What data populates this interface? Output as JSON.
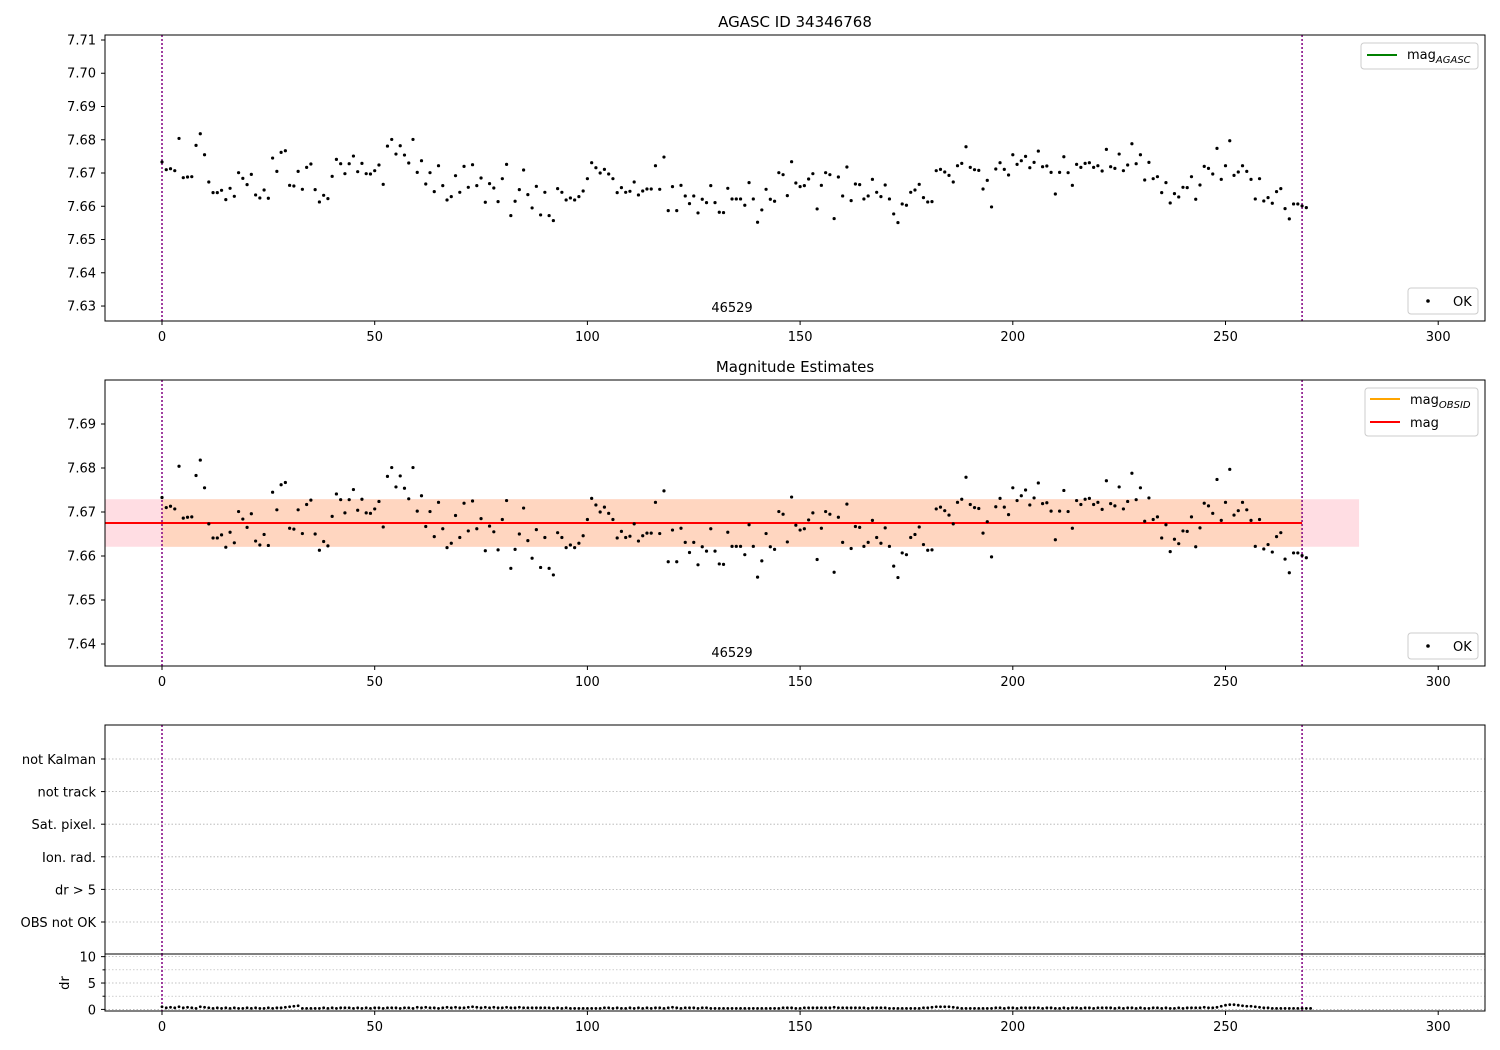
{
  "panels": {
    "top": {
      "title": "AGASC ID 34346768",
      "obsid_label": "46529",
      "y_ticks": [
        "7.63",
        "7.64",
        "7.65",
        "7.66",
        "7.67",
        "7.68",
        "7.69",
        "7.70",
        "7.71"
      ],
      "legend_line": {
        "label_main": "mag",
        "label_sub": "AGASC"
      },
      "legend_points": {
        "label": "OK"
      }
    },
    "middle": {
      "title": "Magnitude Estimates",
      "obsid_label": "46529",
      "y_ticks": [
        "7.64",
        "7.65",
        "7.66",
        "7.67",
        "7.68",
        "7.69"
      ],
      "legend_obsid": {
        "label_main": "mag",
        "label_sub": "OBSID"
      },
      "legend_mag": {
        "label": "mag"
      },
      "legend_points": {
        "label": "OK"
      }
    },
    "flags": {
      "labels": [
        "not Kalman",
        "not track",
        "Sat. pixel.",
        "Ion. rad.",
        "dr > 5",
        "OBS not OK"
      ]
    },
    "dr": {
      "ylabel": "dr",
      "y_ticks": [
        "0",
        "5",
        "10"
      ]
    },
    "x_ticks": [
      "0",
      "50",
      "100",
      "150",
      "200",
      "250",
      "300"
    ]
  },
  "colors": {
    "mag_agasc": "#008000",
    "mag_obsid": "#ffa500",
    "mag": "#ff0000",
    "obsid_boundary": "#800080",
    "band_outer": "#ffdde3",
    "band_inner": "#ffd6c0",
    "points": "#000000",
    "grid": "#b0b0b0"
  },
  "chart_data": [
    {
      "type": "scatter",
      "title": "AGASC ID 34346768",
      "xlim": [
        -13.4,
        311
      ],
      "ylim": [
        7.6255,
        7.7115
      ],
      "x_ticks": [
        0,
        50,
        100,
        150,
        200,
        250,
        300
      ],
      "y_ticks": [
        7.63,
        7.64,
        7.65,
        7.66,
        7.67,
        7.68,
        7.69,
        7.7,
        7.71
      ],
      "obsid_boundaries": [
        0,
        268
      ],
      "obsid_annotation": "46529",
      "series": [
        {
          "name": "OK",
          "kind": "points",
          "color": "#000000",
          "x_start": 0,
          "x_step": 1,
          "values": [
            7.6733,
            7.671,
            7.6713,
            7.6707,
            7.6804,
            7.6686,
            7.6688,
            7.6689,
            7.6783,
            7.6818,
            7.6755,
            7.6673,
            7.6641,
            7.6641,
            7.6648,
            7.662,
            7.6654,
            7.663,
            7.6701,
            7.6684,
            7.6665,
            7.6696,
            7.6634,
            7.6625,
            7.6649,
            7.6624,
            7.6745,
            7.6705,
            7.6762,
            7.6767,
            7.6663,
            7.6661,
            7.6705,
            7.6651,
            7.6717,
            7.6727,
            7.665,
            7.6613,
            7.6633,
            7.6623,
            7.669,
            7.6741,
            7.6728,
            7.6698,
            7.6728,
            7.6751,
            7.6704,
            7.6729,
            7.6698,
            7.6697,
            7.6707,
            7.6724,
            7.6666,
            7.6781,
            7.6801,
            7.6757,
            7.6782,
            7.6754,
            7.673,
            7.6801,
            7.6702,
            7.6737,
            7.6667,
            7.6701,
            7.6644,
            7.6722,
            7.6662,
            7.6619,
            7.6629,
            7.6692,
            7.6642,
            7.672,
            7.6657,
            7.6725,
            7.6662,
            7.6685,
            7.6612,
            7.6668,
            7.6655,
            7.6614,
            7.6683,
            7.6726,
            7.6572,
            7.6615,
            7.665,
            7.6709,
            7.6635,
            7.6595,
            7.666,
            7.6574,
            7.6642,
            7.6572,
            7.6557,
            7.6653,
            7.6642,
            7.6619,
            7.6625,
            7.6619,
            7.6629,
            7.6646,
            7.6683,
            7.6731,
            7.6716,
            7.67,
            7.6711,
            7.6697,
            7.6683,
            7.6641,
            7.6656,
            7.6642,
            7.6645,
            7.6673,
            7.6634,
            7.6646,
            7.6652,
            7.6652,
            7.6722,
            7.6651,
            7.6748,
            7.6587,
            7.6659,
            7.6587,
            7.6663,
            7.6631,
            7.6608,
            7.6631,
            7.658,
            7.6621,
            7.6611,
            7.6662,
            7.6611,
            7.6582,
            7.6581,
            7.6654,
            7.6622,
            7.6622,
            7.6622,
            7.6603,
            7.6671,
            7.6622,
            7.6552,
            7.6589,
            7.6651,
            7.6621,
            7.6615,
            7.6701,
            7.6695,
            7.6632,
            7.6734,
            7.667,
            7.6659,
            7.6662,
            7.6682,
            7.6698,
            7.6592,
            7.6663,
            7.6701,
            7.6695,
            7.6563,
            7.6688,
            7.6631,
            7.6718,
            7.6617,
            7.6667,
            7.6665,
            7.6622,
            7.6631,
            7.6681,
            7.6642,
            7.6629,
            7.6664,
            7.6622,
            7.6577,
            7.6551,
            7.6607,
            7.6603,
            7.6642,
            7.6649,
            7.6666,
            7.6626,
            7.6613,
            7.6614,
            7.6707,
            7.6711,
            7.6703,
            7.6693,
            7.6673,
            7.6722,
            7.6729,
            7.6779,
            7.6717,
            7.671,
            7.6708,
            7.6652,
            7.6678,
            7.6598,
            7.6712,
            7.6731,
            7.6711,
            7.6694,
            7.6755,
            7.6726,
            7.6737,
            7.675,
            7.6716,
            7.6732,
            7.6766,
            7.6719,
            7.6721,
            7.6702,
            7.6637,
            7.6702,
            7.6749,
            7.6701,
            7.6663,
            7.6726,
            7.6717,
            7.6729,
            7.6731,
            7.6717,
            7.6722,
            7.6706,
            7.6771,
            7.6719,
            7.6714,
            7.6757,
            7.6707,
            7.6724,
            7.6788,
            7.6728,
            7.6755,
            7.6679,
            7.6732,
            7.6683,
            7.6689,
            7.6641,
            7.6671,
            7.661,
            7.6638,
            7.6628,
            7.6657,
            7.6656,
            7.6689,
            7.6621,
            7.6664,
            7.672,
            7.6714,
            7.6697,
            7.6774,
            7.6681,
            7.6722,
            7.6797,
            7.6693,
            7.6703,
            7.6722,
            7.6705,
            7.6681,
            7.6622,
            7.6683,
            7.6616,
            7.6626,
            7.6609,
            7.6644,
            7.6653,
            7.6593,
            7.6562,
            7.6607,
            7.6607,
            7.6601,
            7.6596
          ]
        }
      ],
      "legend": [
        {
          "label": "mag_AGASC",
          "kind": "line",
          "color": "#008000",
          "position": "upper right"
        },
        {
          "label": "OK",
          "kind": "points",
          "position": "lower right"
        }
      ]
    },
    {
      "type": "scatter",
      "title": "Magnitude Estimates",
      "xlim": [
        -13.4,
        311
      ],
      "ylim": [
        7.635,
        7.7
      ],
      "x_ticks": [
        0,
        50,
        100,
        150,
        200,
        250,
        300
      ],
      "y_ticks": [
        7.64,
        7.65,
        7.66,
        7.67,
        7.68,
        7.69
      ],
      "obsid_boundaries": [
        0,
        268
      ],
      "obsid_annotation": "46529",
      "mag_line": {
        "value": 7.6675,
        "x_range": [
          -13.4,
          268
        ],
        "color": "#ff0000"
      },
      "band_outer": {
        "y_range": [
          7.6621,
          7.6729
        ],
        "x_range": [
          -13.4,
          281.4
        ]
      },
      "band_inner": {
        "y_range": [
          7.6621,
          7.6729
        ],
        "x_range": [
          0,
          268
        ]
      },
      "series": [
        {
          "name": "OK",
          "kind": "points",
          "color": "#000000",
          "same_values_as": "top panel"
        }
      ],
      "legend": [
        {
          "label": "mag_OBSID",
          "kind": "line",
          "color": "#ffa500",
          "position": "upper right"
        },
        {
          "label": "mag",
          "kind": "line",
          "color": "#ff0000",
          "position": "upper right"
        },
        {
          "label": "OK",
          "kind": "points",
          "position": "lower right"
        }
      ]
    },
    {
      "type": "scatter",
      "categories": [
        "not Kalman",
        "not track",
        "Sat. pixel.",
        "Ion. rad.",
        "dr > 5",
        "OBS not OK"
      ],
      "xlim": [
        -13.4,
        311
      ],
      "obsid_boundaries": [
        0,
        268
      ],
      "flagged_points": []
    },
    {
      "type": "scatter",
      "ylabel": "dr",
      "xlim": [
        -13.4,
        311
      ],
      "ylim": [
        -0.3,
        10.5
      ],
      "y_ticks": [
        0,
        5,
        10
      ],
      "obsid_boundaries": [
        0,
        268
      ],
      "series": [
        {
          "name": "dr",
          "kind": "points",
          "x_start": 0,
          "x_step": 1,
          "values": [
            0.5,
            0.3,
            0.4,
            0.3,
            0.5,
            0.3,
            0.4,
            0.3,
            0.2,
            0.5,
            0.4,
            0.3,
            0.2,
            0.3,
            0.2,
            0.3,
            0.2,
            0.3,
            0.2,
            0.2,
            0.3,
            0.2,
            0.3,
            0.2,
            0.2,
            0.3,
            0.2,
            0.3,
            0.3,
            0.4,
            0.5,
            0.6,
            0.7,
            0.2,
            0.2,
            0.2,
            0.2,
            0.2,
            0.3,
            0.2,
            0.3,
            0.2,
            0.3,
            0.3,
            0.3,
            0.2,
            0.3,
            0.2,
            0.3,
            0.2,
            0.3,
            0.3,
            0.2,
            0.3,
            0.3,
            0.3,
            0.2,
            0.3,
            0.3,
            0.2,
            0.4,
            0.3,
            0.4,
            0.3,
            0.3,
            0.2,
            0.3,
            0.4,
            0.3,
            0.4,
            0.3,
            0.3,
            0.4,
            0.5,
            0.4,
            0.3,
            0.4,
            0.3,
            0.4,
            0.3,
            0.3,
            0.4,
            0.3,
            0.3,
            0.4,
            0.3,
            0.3,
            0.3,
            0.3,
            0.3,
            0.3,
            0.3,
            0.2,
            0.3,
            0.2,
            0.3,
            0.2,
            0.2,
            0.2,
            0.2,
            0.2,
            0.2,
            0.2,
            0.2,
            0.3,
            0.3,
            0.2,
            0.3,
            0.2,
            0.2,
            0.3,
            0.2,
            0.3,
            0.2,
            0.3,
            0.2,
            0.3,
            0.3,
            0.2,
            0.3,
            0.4,
            0.3,
            0.2,
            0.3,
            0.3,
            0.3,
            0.2,
            0.3,
            0.3,
            0.2,
            0.2,
            0.2,
            0.2,
            0.2,
            0.2,
            0.2,
            0.2,
            0.2,
            0.2,
            0.2,
            0.2,
            0.2,
            0.2,
            0.2,
            0.2,
            0.2,
            0.3,
            0.3,
            0.3,
            0.2,
            0.2,
            0.3,
            0.3,
            0.3,
            0.3,
            0.3,
            0.3,
            0.3,
            0.4,
            0.3,
            0.3,
            0.3,
            0.3,
            0.3,
            0.3,
            0.3,
            0.2,
            0.3,
            0.3,
            0.3,
            0.3,
            0.2,
            0.2,
            0.2,
            0.2,
            0.2,
            0.2,
            0.2,
            0.2,
            0.3,
            0.3,
            0.4,
            0.5,
            0.5,
            0.5,
            0.5,
            0.4,
            0.3,
            0.2,
            0.2,
            0.2,
            0.2,
            0.2,
            0.2,
            0.2,
            0.2,
            0.3,
            0.3,
            0.2,
            0.3,
            0.3,
            0.2,
            0.3,
            0.3,
            0.3,
            0.3,
            0.3,
            0.2,
            0.3,
            0.3,
            0.2,
            0.2,
            0.3,
            0.2,
            0.3,
            0.3,
            0.2,
            0.3,
            0.3,
            0.2,
            0.3,
            0.3,
            0.3,
            0.3,
            0.2,
            0.3,
            0.2,
            0.3,
            0.3,
            0.2,
            0.3,
            0.2,
            0.2,
            0.3,
            0.3,
            0.2,
            0.3,
            0.2,
            0.2,
            0.3,
            0.2,
            0.3,
            0.3,
            0.3,
            0.3,
            0.4,
            0.3,
            0.3,
            0.4,
            0.6,
            0.8,
            0.9,
            0.9,
            0.8,
            0.7,
            0.6,
            0.6,
            0.5,
            0.4,
            0.3,
            0.3,
            0.2,
            0.2,
            0.2,
            0.2,
            0.2,
            0.2,
            0.2,
            0.2,
            0.2,
            0.2
          ]
        }
      ]
    }
  ]
}
